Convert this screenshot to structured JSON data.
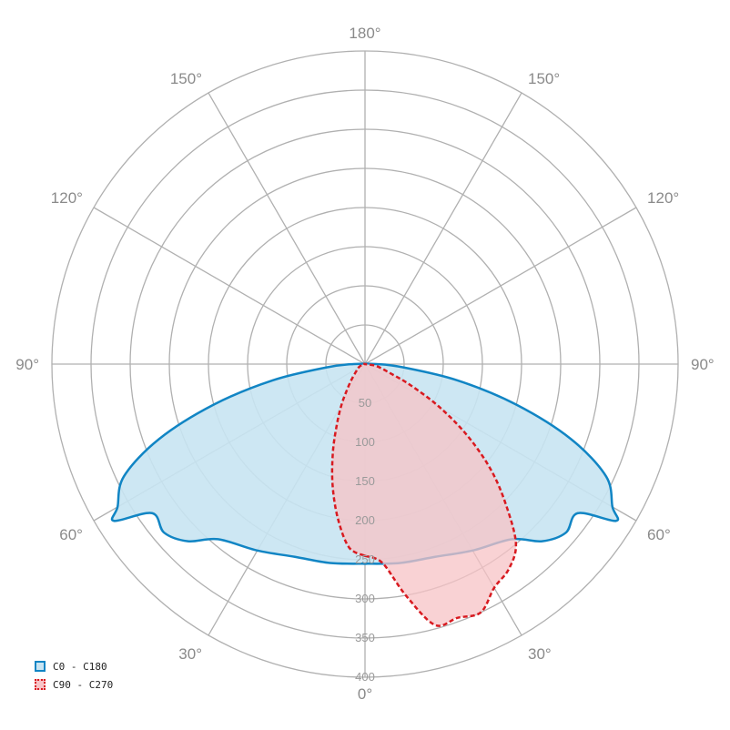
{
  "chart_data": {
    "type": "polar-area",
    "radial_axis": {
      "min": 0,
      "max": 400,
      "ticks": [
        "50",
        "100",
        "150",
        "200",
        "250",
        "300",
        "350",
        "400"
      ]
    },
    "angle_labels": {
      "bottom": "0°",
      "top": "180°",
      "left": [
        "30°",
        "60°",
        "90°",
        "120°",
        "150°"
      ],
      "right": [
        "30°",
        "60°",
        "90°",
        "120°",
        "150°"
      ]
    },
    "series": [
      {
        "name": "C0 - C180",
        "color": "#1185c4",
        "fill": "#c8e4f2",
        "dash": "solid",
        "angles": [
          0,
          10,
          20,
          30,
          40,
          45,
          50,
          55,
          58,
          60,
          65,
          70,
          75,
          80,
          85,
          90
        ],
        "left": [
          255,
          258,
          262,
          275,
          292,
          320,
          335,
          332,
          378,
          365,
          340,
          280,
          200,
          120,
          50,
          15
        ],
        "right": [
          255,
          258,
          262,
          275,
          292,
          320,
          335,
          332,
          378,
          365,
          340,
          280,
          200,
          120,
          50,
          15
        ]
      },
      {
        "name": "C90 - C270",
        "color": "#d81a20",
        "fill": "#f7c3c6",
        "dash": "dashed",
        "angles": [
          0,
          5,
          10,
          15,
          20,
          25,
          30,
          35,
          40,
          45,
          50,
          55,
          60,
          65,
          70,
          80,
          90
        ],
        "left": [
          245,
          235,
          200,
          160,
          120,
          85,
          60,
          40,
          28,
          20,
          15,
          12,
          10,
          8,
          6,
          3,
          0
        ],
        "right": [
          245,
          255,
          300,
          345,
          345,
          350,
          330,
          320,
          300,
          255,
          210,
          160,
          110,
          65,
          35,
          15,
          0
        ]
      }
    ]
  }
}
